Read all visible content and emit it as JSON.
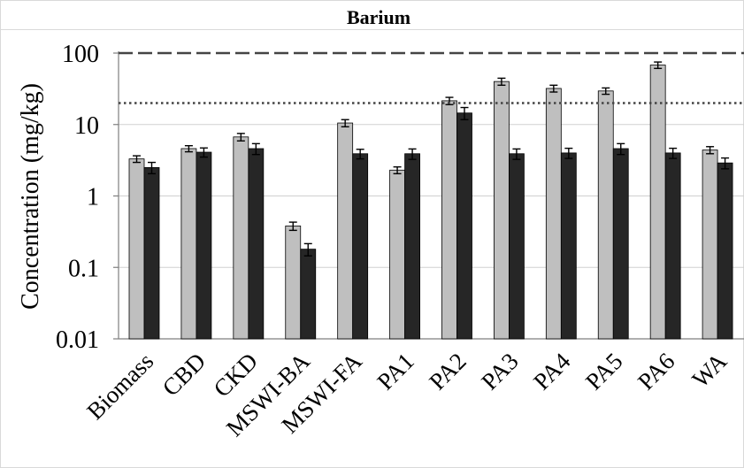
{
  "chart_data": {
    "type": "bar",
    "title": "Barium",
    "ylabel": "Concentration (mg/kg)",
    "xlabel": "",
    "yscale": "log",
    "ylim": [
      0.01,
      100
    ],
    "ytick_labels": [
      "100",
      "10",
      "1",
      "0.1",
      "0.01"
    ],
    "ytick_values": [
      100,
      10,
      1,
      0.1,
      0.01
    ],
    "grid": "horizontal",
    "categories": [
      "Biomass",
      "CBD",
      "CKD",
      "MSWI-BA",
      "MSWI-FA",
      "PA1",
      "PA2",
      "PA3",
      "PA4",
      "PA5",
      "PA6",
      "WA"
    ],
    "series": [
      {
        "color": "#bfbfbf",
        "values": [
          3.3,
          4.6,
          6.7,
          0.38,
          10.5,
          2.3,
          21.5,
          40,
          32,
          29.5,
          68,
          4.4
        ],
        "errors": [
          0.35,
          0.45,
          0.8,
          0.05,
          1.2,
          0.25,
          2.5,
          4.5,
          3.5,
          3.0,
          7.0,
          0.5
        ]
      },
      {
        "color": "#262626",
        "values": [
          2.5,
          4.1,
          4.6,
          0.18,
          3.9,
          3.9,
          14.5,
          3.9,
          4.0,
          4.6,
          4.0,
          2.9
        ],
        "errors": [
          0.45,
          0.6,
          0.8,
          0.035,
          0.6,
          0.65,
          2.8,
          0.65,
          0.65,
          0.8,
          0.65,
          0.5
        ]
      }
    ],
    "reference_lines": [
      {
        "value": 100,
        "style": "dashed",
        "color": "#444444"
      },
      {
        "value": 20,
        "style": "dotted",
        "color": "#444444"
      }
    ]
  }
}
